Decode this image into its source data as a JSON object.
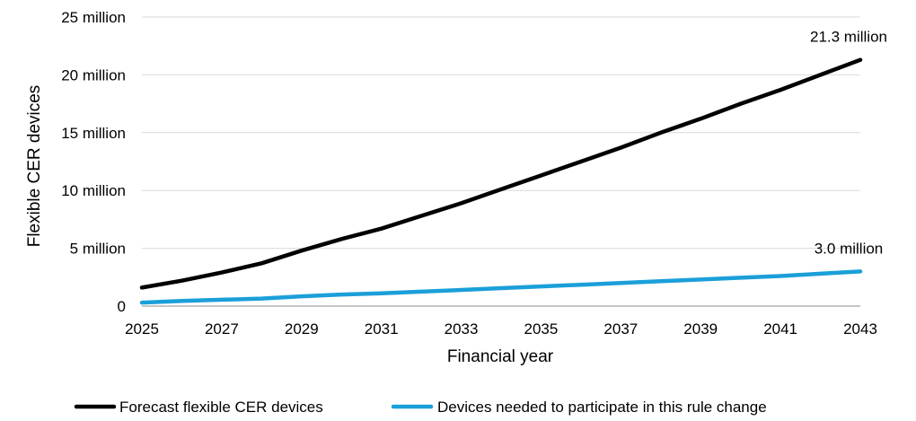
{
  "chart_data": {
    "type": "line",
    "xlabel": "Financial year",
    "ylabel": "Flexible CER devices",
    "x": [
      2025,
      2026,
      2027,
      2028,
      2029,
      2030,
      2031,
      2032,
      2033,
      2034,
      2035,
      2036,
      2037,
      2038,
      2039,
      2040,
      2041,
      2042,
      2043
    ],
    "x_ticks": [
      "2025",
      "2027",
      "2029",
      "2031",
      "2033",
      "2035",
      "2037",
      "2039",
      "2041",
      "2043"
    ],
    "y_ticks": [
      "0",
      "5 million",
      "10 million",
      "15 million",
      "20 million",
      "25 million"
    ],
    "ylim": [
      0,
      25
    ],
    "xlim": [
      2025,
      2043
    ],
    "grid": "horizontal",
    "legend_position": "bottom",
    "series": [
      {
        "name": "Forecast flexible CER devices",
        "color": "#000000",
        "values": [
          1.6,
          2.2,
          2.9,
          3.7,
          4.8,
          5.8,
          6.7,
          7.8,
          8.9,
          10.1,
          11.3,
          12.5,
          13.7,
          15.0,
          16.2,
          17.5,
          18.7,
          20.0,
          21.3
        ]
      },
      {
        "name": "Devices needed to participate in this rule change",
        "color": "#1a9fd9",
        "values": [
          0.3,
          0.45,
          0.55,
          0.65,
          0.85,
          1.0,
          1.1,
          1.25,
          1.4,
          1.55,
          1.7,
          1.85,
          2.0,
          2.15,
          2.3,
          2.45,
          2.6,
          2.8,
          3.0
        ]
      }
    ],
    "annotations": [
      {
        "text": "21.3 million",
        "series": 0
      },
      {
        "text": "3.0 million",
        "series": 1
      }
    ]
  }
}
